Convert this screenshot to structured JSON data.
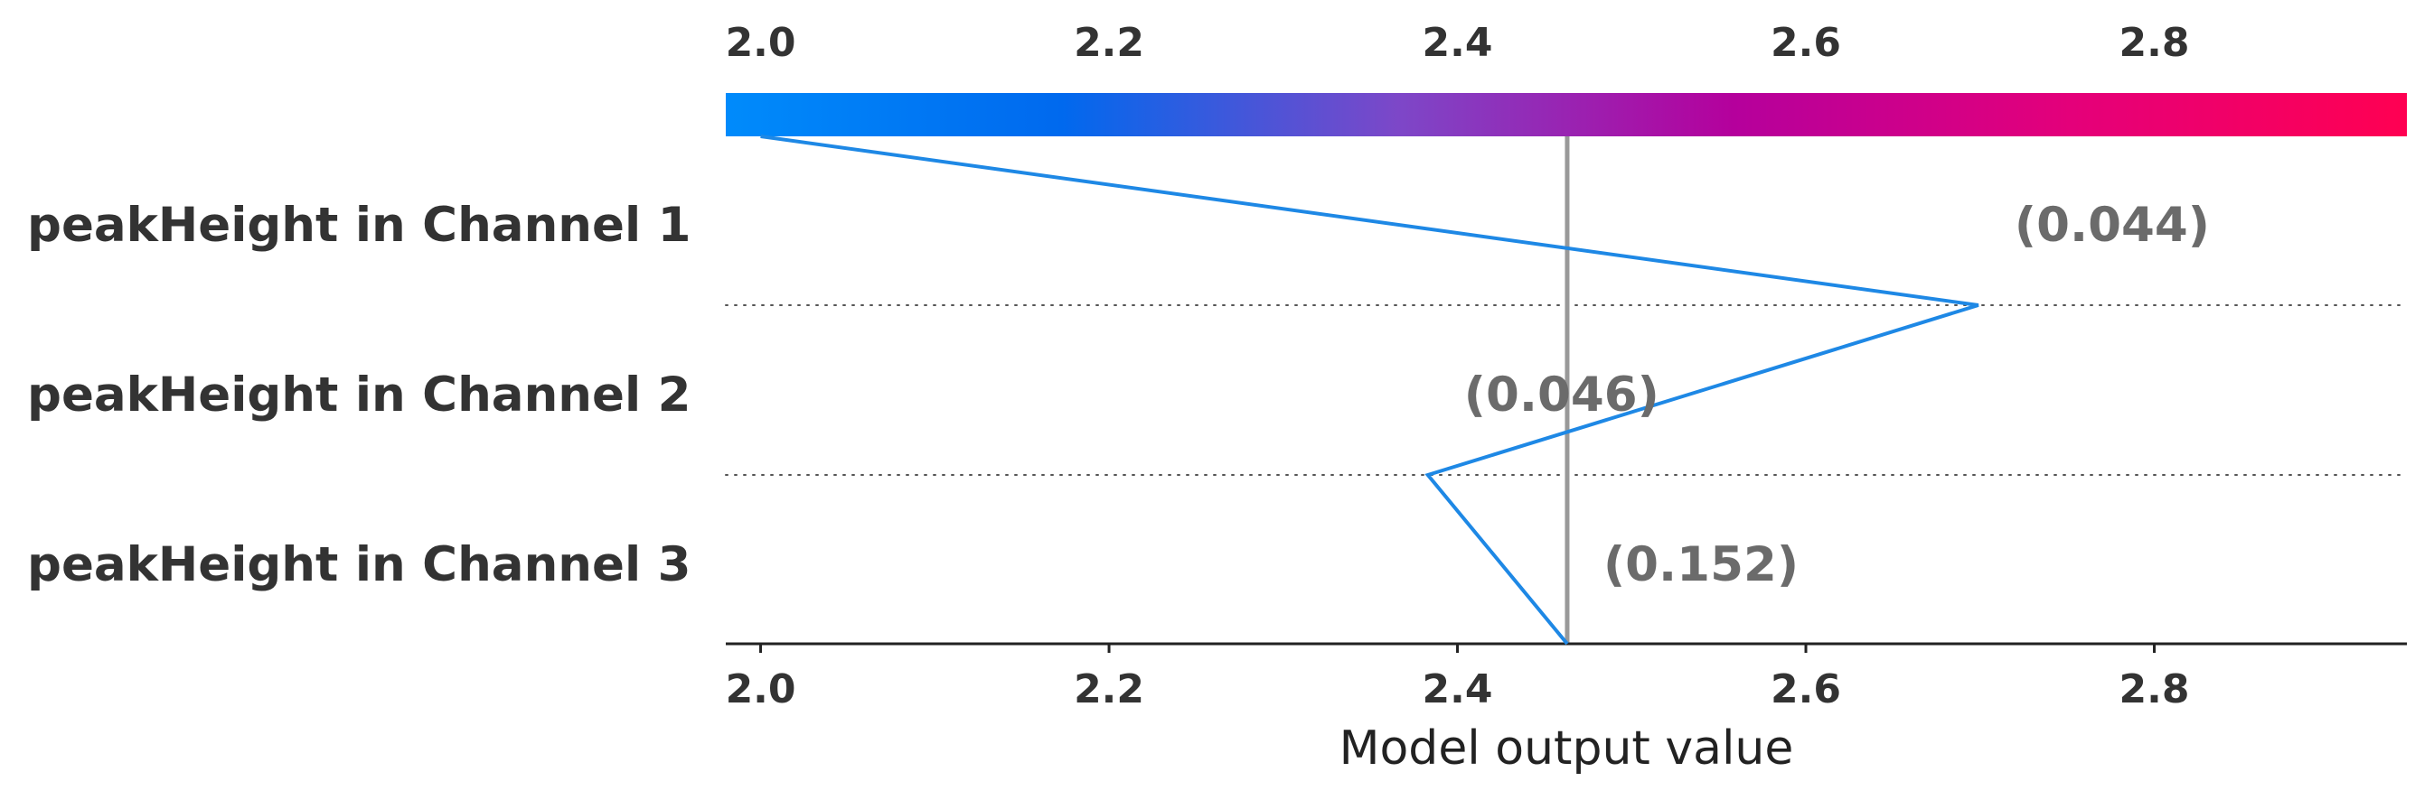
{
  "chart_data": {
    "type": "decision_plot",
    "xlabel": "Model output value",
    "xlim": [
      1.98,
      2.945
    ],
    "ticks": [
      "2.0",
      "2.2",
      "2.4",
      "2.6",
      "2.8"
    ],
    "tick_values": [
      2.0,
      2.2,
      2.4,
      2.6,
      2.8
    ],
    "base_value": 2.463,
    "colorbar": {
      "range": [
        1.98,
        2.945
      ],
      "colors": [
        "#008bfb",
        "#0069ee",
        "#7d47c8",
        "#b5009c",
        "#e4007a",
        "#ff0052"
      ]
    },
    "features": [
      {
        "name": "peakHeight in Channel 1",
        "value_label": "(0.044)"
      },
      {
        "name": "peakHeight in Channel 2",
        "value_label": "(0.046)"
      },
      {
        "name": "peakHeight in Channel 3",
        "value_label": "(0.152)"
      }
    ],
    "path": {
      "color": "#1e88e5",
      "points": [
        2.0,
        2.699,
        2.383,
        2.463
      ]
    }
  }
}
